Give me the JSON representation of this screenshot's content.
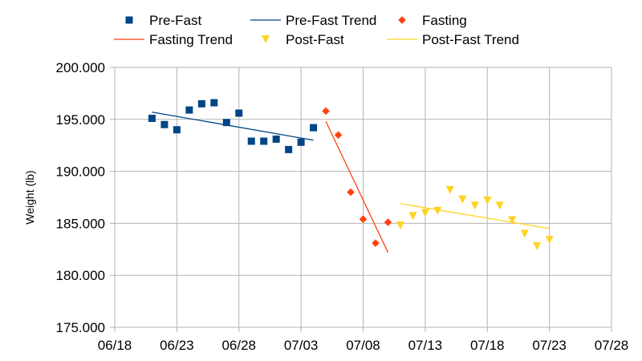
{
  "chart_data": {
    "type": "scatter",
    "ylabel": "Weight (lb)",
    "xlabel": "",
    "ylim": [
      175,
      200
    ],
    "xlim": [
      "2023-06-18",
      "2023-07-28"
    ],
    "y_ticks": [
      "175.000",
      "180.000",
      "185.000",
      "190.000",
      "195.000",
      "200.000"
    ],
    "x_ticks": [
      "06/18",
      "06/23",
      "06/28",
      "07/03",
      "07/08",
      "07/13",
      "07/18",
      "07/23",
      "07/28"
    ],
    "grid": "vertical and horizontal",
    "legend_position": "top",
    "series": [
      {
        "name": "Pre-Fast",
        "kind": "points",
        "marker": "square",
        "color": "#004586",
        "x": [
          "2023-06-21",
          "2023-06-22",
          "2023-06-23",
          "2023-06-24",
          "2023-06-25",
          "2023-06-26",
          "2023-06-27",
          "2023-06-28",
          "2023-06-29",
          "2023-06-30",
          "2023-07-01",
          "2023-07-02",
          "2023-07-03",
          "2023-07-04"
        ],
        "y": [
          195.1,
          194.5,
          194.0,
          195.9,
          196.5,
          196.6,
          194.7,
          195.6,
          192.9,
          192.9,
          193.1,
          192.1,
          192.8,
          194.2
        ]
      },
      {
        "name": "Pre-Fast Trend",
        "kind": "trend",
        "color": "#004586",
        "x": [
          "2023-06-21",
          "2023-07-04"
        ],
        "y": [
          195.7,
          193.0
        ]
      },
      {
        "name": "Fasting",
        "kind": "points",
        "marker": "diamond",
        "color": "#ff420e",
        "x": [
          "2023-07-05",
          "2023-07-06",
          "2023-07-07",
          "2023-07-08",
          "2023-07-09",
          "2023-07-10"
        ],
        "y": [
          195.8,
          193.5,
          188.0,
          185.4,
          183.1,
          185.1
        ]
      },
      {
        "name": "Fasting Trend",
        "kind": "trend",
        "color": "#ff420e",
        "x": [
          "2023-07-05",
          "2023-07-10"
        ],
        "y": [
          194.8,
          182.2
        ]
      },
      {
        "name": "Post-Fast",
        "kind": "points",
        "marker": "triangle-down",
        "color": "#ffd320",
        "x": [
          "2023-07-11",
          "2023-07-12",
          "2023-07-13",
          "2023-07-14",
          "2023-07-15",
          "2023-07-16",
          "2023-07-17",
          "2023-07-18",
          "2023-07-19",
          "2023-07-20",
          "2023-07-21",
          "2023-07-22",
          "2023-07-23"
        ],
        "y": [
          184.8,
          185.7,
          186.0,
          186.2,
          188.2,
          187.3,
          186.7,
          187.2,
          186.7,
          185.3,
          184.0,
          182.8,
          183.4
        ]
      },
      {
        "name": "Post-Fast Trend",
        "kind": "trend",
        "color": "#ffd320",
        "x": [
          "2023-07-11",
          "2023-07-23"
        ],
        "y": [
          186.9,
          184.5
        ]
      }
    ]
  }
}
